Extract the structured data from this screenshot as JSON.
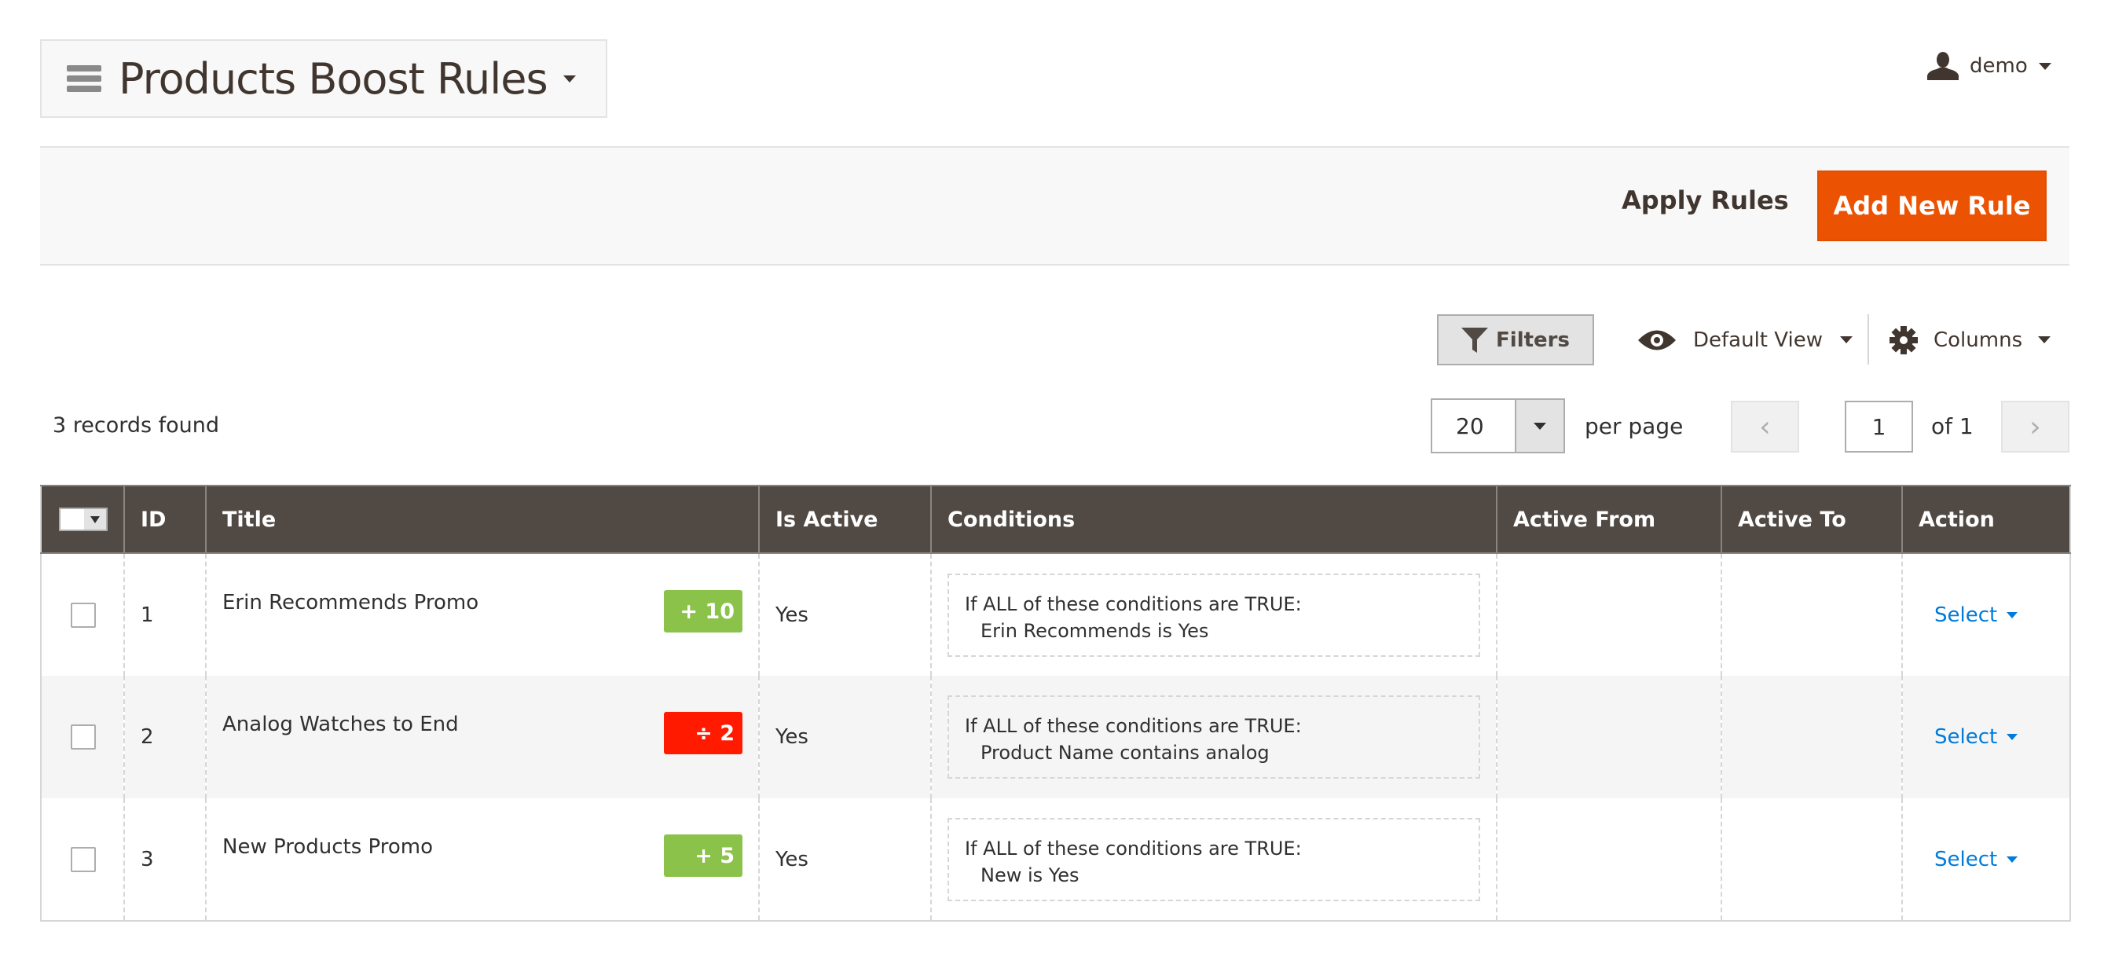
{
  "header": {
    "title": "Products Boost Rules",
    "user": "demo"
  },
  "actions": {
    "apply": "Apply Rules",
    "add_new": "Add New Rule",
    "brand_color": "#eb5202"
  },
  "toolbar": {
    "filters": "Filters",
    "view": "Default View",
    "columns": "Columns"
  },
  "grid": {
    "records_found": "3 records found",
    "per_page_value": "20",
    "per_page_label": "per page",
    "page_value": "1",
    "page_of": "of 1",
    "columns": [
      "ID",
      "Title",
      "Is Active",
      "Conditions",
      "Active From",
      "Active To",
      "Action"
    ],
    "rows": [
      {
        "id": "1",
        "title": "Erin Recommends Promo",
        "boost": "+ 10",
        "boost_color": "#8bc34a",
        "active": "Yes",
        "cond_line1": "If ALL of these conditions are TRUE:",
        "cond_line2": "Erin Recommends is Yes",
        "active_from": "",
        "active_to": "",
        "action": "Select"
      },
      {
        "id": "2",
        "title": "Analog Watches to End",
        "boost": "÷ 2",
        "boost_color": "#ff1a00",
        "active": "Yes",
        "cond_line1": "If ALL of these conditions are TRUE:",
        "cond_line2": "Product Name contains analog",
        "active_from": "",
        "active_to": "",
        "action": "Select"
      },
      {
        "id": "3",
        "title": "New Products Promo",
        "boost": "+ 5",
        "boost_color": "#8bc34a",
        "active": "Yes",
        "cond_line1": "If ALL of these conditions are TRUE:",
        "cond_line2": "New is Yes",
        "active_from": "",
        "active_to": "",
        "action": "Select"
      }
    ]
  }
}
